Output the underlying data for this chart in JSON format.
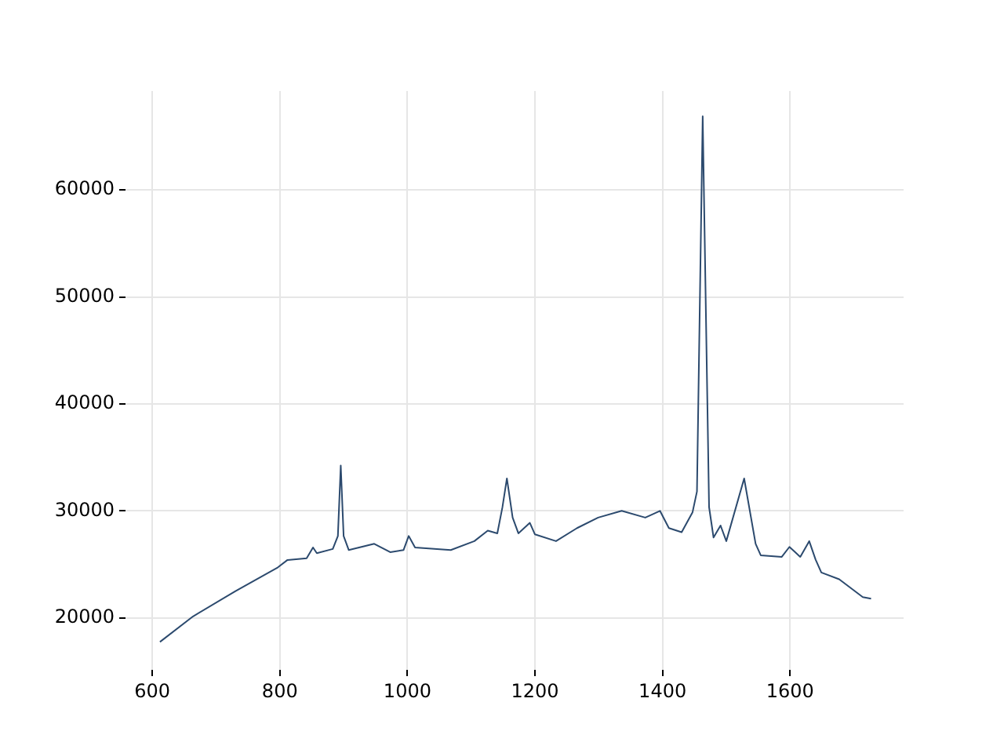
{
  "chart_data": {
    "type": "line",
    "xlim": [
      558,
      1778
    ],
    "ylim": [
      15150,
      69250
    ],
    "xticks": [
      600,
      800,
      1000,
      1200,
      1400,
      1600
    ],
    "yticks": [
      20000,
      30000,
      40000,
      50000,
      60000
    ],
    "grid": true,
    "marker": "none",
    "line_style": "solid",
    "series": [
      {
        "color": "#2c4a6e",
        "x": [
          612,
          664,
          731,
          797,
          812,
          842,
          852,
          858,
          883,
          891,
          895.5,
          900,
          908,
          948,
          973,
          994,
          1002,
          1012,
          1068,
          1105,
          1126,
          1141,
          1149,
          1156,
          1165,
          1174,
          1192,
          1200,
          1233,
          1266,
          1299,
          1336,
          1373,
          1396,
          1410,
          1430,
          1447,
          1454,
          1463,
          1473,
          1480,
          1491,
          1500,
          1528,
          1546,
          1554,
          1587,
          1599,
          1616,
          1630,
          1640,
          1649,
          1677,
          1714,
          1727
        ],
        "values": [
          17760,
          20150,
          22530,
          24730,
          25420,
          25570,
          26590,
          26050,
          26450,
          27660,
          34250,
          27660,
          26350,
          26930,
          26150,
          26350,
          27660,
          26590,
          26350,
          27180,
          28160,
          27910,
          30350,
          33040,
          29380,
          27910,
          28890,
          27810,
          27180,
          28400,
          29380,
          30010,
          29380,
          30010,
          28400,
          28010,
          29860,
          31820,
          66880,
          30360,
          27520,
          28640,
          27180,
          33040,
          26930,
          25860,
          25710,
          26640,
          25710,
          27180,
          25460,
          24250,
          23620,
          21950,
          21800
        ]
      }
    ]
  }
}
